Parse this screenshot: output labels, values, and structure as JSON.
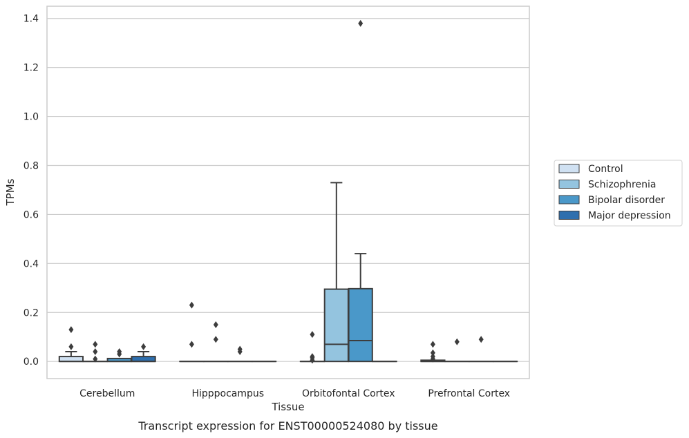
{
  "chart_data": {
    "type": "box",
    "caption": "Transcript expression for ENST00000524080 by tissue",
    "xlabel": "Tissue",
    "ylabel": "TPMs",
    "ylim": [
      -0.07,
      1.45
    ],
    "yticks": [
      0.0,
      0.2,
      0.4,
      0.6,
      0.8,
      1.0,
      1.2,
      1.4
    ],
    "ytick_labels": [
      "0.0",
      "0.2",
      "0.4",
      "0.6",
      "0.8",
      "1.0",
      "1.2",
      "1.4"
    ],
    "grid": true,
    "legend_position": "right",
    "categories": [
      "Cerebellum",
      "Hipppocampus",
      "Orbitofontal Cortex",
      "Prefrontal Cortex"
    ],
    "series": [
      {
        "name": "Control",
        "color": "#d0e1f2",
        "boxes": [
          {
            "q1": 0.0,
            "median": 0.0,
            "q3": 0.02,
            "whislo": 0.0,
            "whishi": 0.04,
            "fliers": [
              0.06,
              0.13
            ]
          },
          {
            "q1": 0.0,
            "median": 0.0,
            "q3": 0.0,
            "whislo": 0.0,
            "whishi": 0.0,
            "fliers": [
              0.07,
              0.23
            ]
          },
          {
            "q1": 0.0,
            "median": 0.0,
            "q3": 0.0,
            "whislo": 0.0,
            "whishi": 0.0,
            "fliers": [
              0.005,
              0.015,
              0.02,
              0.11
            ]
          },
          {
            "q1": 0.0,
            "median": 0.0,
            "q3": 0.005,
            "whislo": 0.0,
            "whishi": 0.005,
            "fliers": [
              0.01,
              0.02,
              0.035,
              0.07
            ]
          }
        ]
      },
      {
        "name": "Schizophrenia",
        "color": "#94c4df",
        "boxes": [
          {
            "q1": 0.0,
            "median": 0.0,
            "q3": 0.0,
            "whislo": 0.0,
            "whishi": 0.0,
            "fliers": [
              0.01,
              0.04,
              0.07
            ]
          },
          {
            "q1": 0.0,
            "median": 0.0,
            "q3": 0.0,
            "whislo": 0.0,
            "whishi": 0.0,
            "fliers": [
              0.09,
              0.15
            ]
          },
          {
            "q1": 0.0,
            "median": 0.07,
            "q3": 0.295,
            "whislo": 0.0,
            "whishi": 0.73,
            "fliers": []
          },
          {
            "q1": 0.0,
            "median": 0.0,
            "q3": 0.0,
            "whislo": 0.0,
            "whishi": 0.0,
            "fliers": [
              0.08
            ]
          }
        ]
      },
      {
        "name": "Bipolar disorder",
        "color": "#4a98c9",
        "boxes": [
          {
            "q1": 0.0,
            "median": 0.0,
            "q3": 0.012,
            "whislo": 0.0,
            "whishi": 0.012,
            "fliers": [
              0.03,
              0.04
            ]
          },
          {
            "q1": 0.0,
            "median": 0.0,
            "q3": 0.0,
            "whislo": 0.0,
            "whishi": 0.0,
            "fliers": [
              0.04,
              0.05
            ]
          },
          {
            "q1": 0.0,
            "median": 0.085,
            "q3": 0.297,
            "whislo": 0.0,
            "whishi": 0.44,
            "fliers": [
              1.38
            ]
          },
          {
            "q1": 0.0,
            "median": 0.0,
            "q3": 0.0,
            "whislo": 0.0,
            "whishi": 0.0,
            "fliers": [
              0.09
            ]
          }
        ]
      },
      {
        "name": "Major depression",
        "color": "#2e6fae",
        "boxes": [
          {
            "q1": 0.0,
            "median": 0.0,
            "q3": 0.02,
            "whislo": 0.0,
            "whishi": 0.04,
            "fliers": [
              0.06
            ]
          },
          {
            "q1": 0.0,
            "median": 0.0,
            "q3": 0.0,
            "whislo": 0.0,
            "whishi": 0.0,
            "fliers": []
          },
          {
            "q1": 0.0,
            "median": 0.0,
            "q3": 0.0,
            "whislo": 0.0,
            "whishi": 0.0,
            "fliers": []
          },
          {
            "q1": 0.0,
            "median": 0.0,
            "q3": 0.0,
            "whislo": 0.0,
            "whishi": 0.0,
            "fliers": []
          }
        ]
      }
    ]
  }
}
